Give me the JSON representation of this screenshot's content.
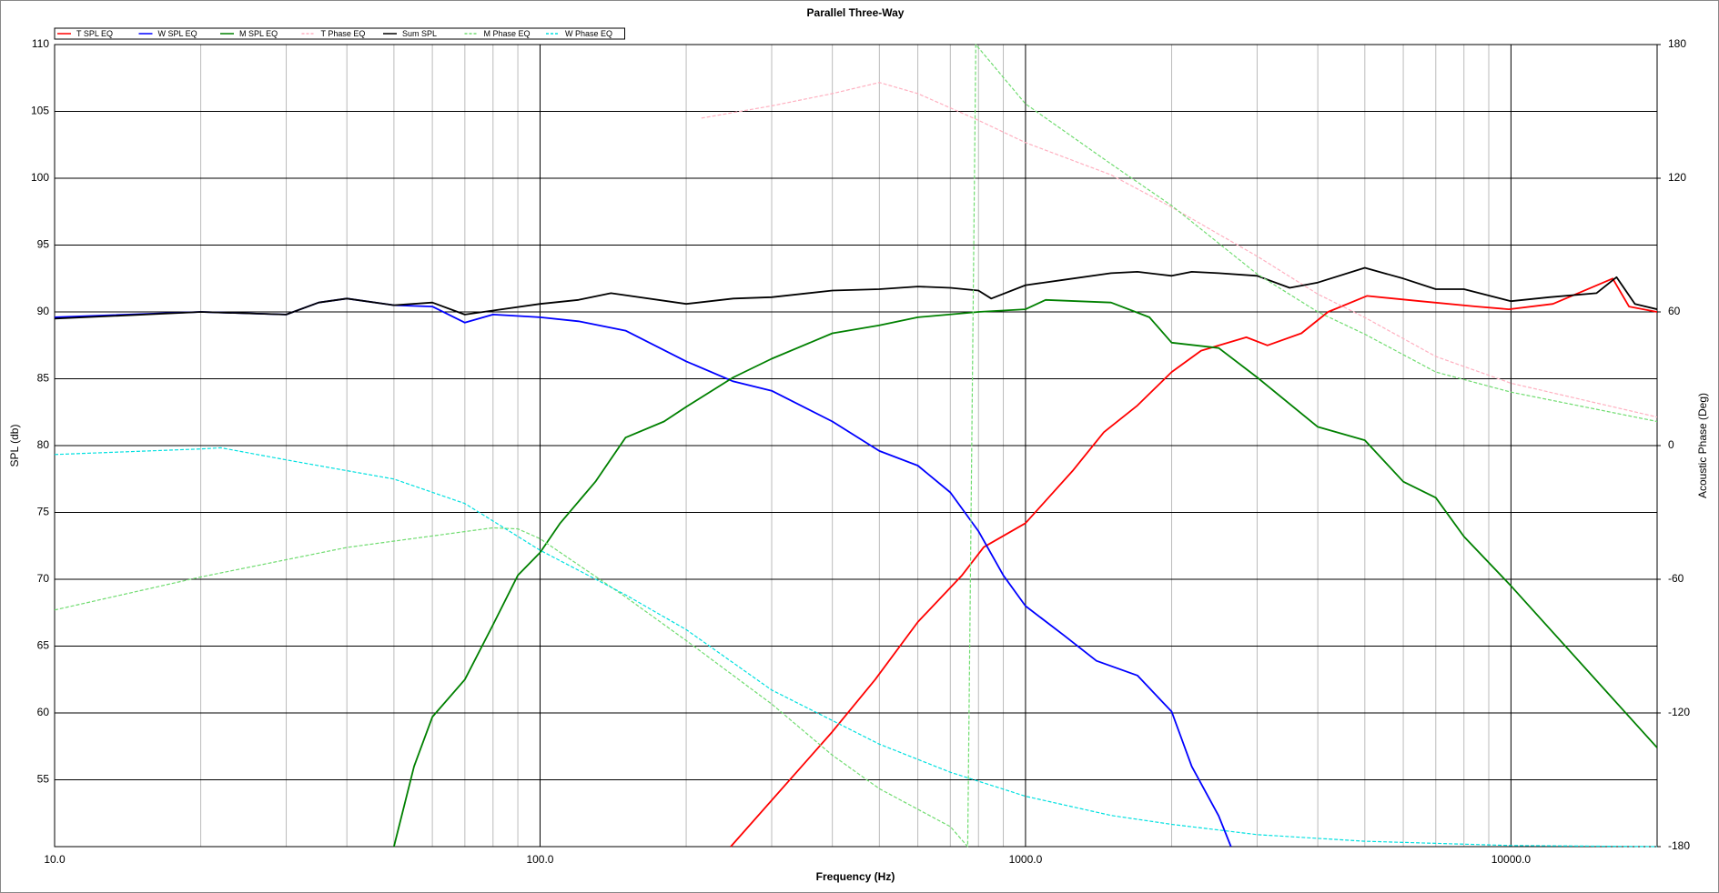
{
  "chart_data": {
    "type": "line",
    "title": "Parallel Three-Way",
    "x_label": "Frequency (Hz)",
    "y_label": "SPL (db)",
    "y2_label": "Acoustic Phase (Deg)",
    "x_scale": "log",
    "grid": true,
    "legend": "top-left",
    "xlim": [
      10,
      20000
    ],
    "xticks": [
      {
        "value": 10,
        "label": "10.0"
      },
      {
        "value": 100,
        "label": "100.0"
      },
      {
        "value": 1000,
        "label": "1000.0"
      },
      {
        "value": 10000,
        "label": "10000.0"
      }
    ],
    "ylim": [
      50,
      110
    ],
    "yticks": [
      55,
      60,
      65,
      70,
      75,
      80,
      85,
      90,
      95,
      100,
      105,
      110
    ],
    "y2lim": [
      -180,
      180
    ],
    "y2ticks": [
      -180,
      -120,
      -60,
      0,
      60,
      120,
      180
    ],
    "series": [
      {
        "name": "T SPL EQ",
        "color": "#ff0000",
        "dashed": false,
        "x": [
          247,
          400,
          490,
          600,
          740,
          820,
          1000,
          1250,
          1450,
          1700,
          2000,
          2300,
          2850,
          3150,
          3700,
          4200,
          5050,
          6500,
          8500,
          9900,
          12200,
          16200,
          17500,
          20000
        ],
        "values": [
          50,
          58.6,
          62.5,
          66.8,
          70.3,
          72.4,
          74.2,
          78.1,
          81.0,
          83.0,
          85.5,
          87.1,
          88.1,
          87.5,
          88.4,
          90.0,
          91.2,
          90.8,
          90.4,
          90.2,
          90.6,
          92.5,
          90.4,
          90.0
        ]
      },
      {
        "name": "W SPL EQ",
        "color": "#0000ff",
        "dashed": false,
        "x": [
          10,
          20,
          30,
          35,
          40,
          50,
          60,
          70,
          80,
          100,
          120,
          150,
          200,
          250,
          300,
          400,
          500,
          600,
          700,
          800,
          900,
          1000,
          1200,
          1400,
          1700,
          2000,
          2200,
          2500,
          2650
        ],
        "values": [
          89.6,
          90.0,
          89.8,
          90.7,
          91.0,
          90.5,
          90.4,
          89.2,
          89.8,
          89.6,
          89.3,
          88.6,
          86.3,
          84.8,
          84.1,
          81.8,
          79.6,
          78.5,
          76.5,
          73.6,
          70.3,
          68.0,
          65.8,
          63.9,
          62.8,
          60.1,
          56.0,
          52.3,
          50
        ]
      },
      {
        "name": "M SPL EQ",
        "color": "#008000",
        "dashed": false,
        "x": [
          50,
          55,
          60,
          70,
          80,
          90,
          100,
          110,
          130,
          150,
          180,
          200,
          250,
          300,
          400,
          500,
          600,
          800,
          1000,
          1100,
          1500,
          1800,
          2000,
          2500,
          3000,
          4000,
          5000,
          6000,
          7000,
          8000,
          10000,
          20000
        ],
        "values": [
          50,
          56,
          59.7,
          62.5,
          66.6,
          70.3,
          72.0,
          74.2,
          77.3,
          80.6,
          81.8,
          82.9,
          85.1,
          86.5,
          88.4,
          89.0,
          89.6,
          90.0,
          90.2,
          90.9,
          90.7,
          89.6,
          87.7,
          87.3,
          85.1,
          81.4,
          80.4,
          77.3,
          76.1,
          73.2,
          69.5,
          57.4
        ]
      },
      {
        "name": "T Phase EQ",
        "color": "#ffb0c0",
        "dashed": true,
        "axis": "y2",
        "x": [
          215,
          300,
          400,
          500,
          600,
          800,
          1000,
          1500,
          2000,
          3000,
          4000,
          5000,
          7000,
          10000,
          20000
        ],
        "values": [
          147,
          152.5,
          158,
          163,
          158,
          146,
          136,
          121.5,
          107,
          85,
          68,
          57.5,
          40,
          28,
          12.8
        ]
      },
      {
        "name": "Sum SPL",
        "color": "#000000",
        "dashed": false,
        "x": [
          10,
          20,
          30,
          35,
          40,
          50,
          60,
          70,
          80,
          100,
          120,
          140,
          200,
          250,
          300,
          400,
          500,
          600,
          700,
          800,
          850,
          1000,
          1200,
          1500,
          1700,
          2000,
          2200,
          2500,
          3000,
          3500,
          4000,
          5000,
          6000,
          7000,
          8000,
          10000,
          12000,
          15000,
          16500,
          18000,
          20000
        ],
        "values": [
          89.5,
          90.0,
          89.8,
          90.7,
          91.0,
          90.5,
          90.7,
          89.8,
          90.1,
          90.6,
          90.9,
          91.4,
          90.6,
          91.0,
          91.1,
          91.6,
          91.7,
          91.9,
          91.8,
          91.6,
          91.0,
          92.0,
          92.4,
          92.9,
          93.0,
          92.7,
          93.0,
          92.9,
          92.7,
          91.8,
          92.2,
          93.3,
          92.5,
          91.7,
          91.7,
          90.8,
          91.1,
          91.4,
          92.6,
          90.6,
          90.2
        ]
      },
      {
        "name": "M Phase EQ",
        "color": "#70dc70",
        "dashed": true,
        "axis": "y2",
        "x": [
          10,
          20,
          40,
          80,
          90,
          100,
          150,
          200,
          300,
          400,
          500,
          700,
          760,
          790,
          1000,
          1500,
          2000,
          3000,
          4000,
          5000,
          7000,
          10000,
          20000
        ],
        "values": [
          -73.8,
          -59,
          -45.7,
          -36.9,
          -37.4,
          -41.8,
          -67.9,
          -87.5,
          -116,
          -139,
          -154,
          -171,
          -180,
          180,
          153.4,
          126.4,
          107.7,
          77,
          60,
          50,
          33,
          24,
          10.8
        ]
      },
      {
        "name": "W Phase EQ",
        "color": "#00e0e0",
        "dashed": true,
        "axis": "y2",
        "x": [
          10,
          20,
          22,
          30,
          50,
          70,
          100,
          150,
          200,
          300,
          500,
          700,
          1000,
          1500,
          2000,
          3000,
          5000,
          10000,
          20000
        ],
        "values": [
          -4,
          -1.5,
          -1,
          -6.4,
          -15,
          -26,
          -47,
          -67,
          -82.6,
          -109.7,
          -134,
          -146.6,
          -157.4,
          -166,
          -170,
          -174.6,
          -177.6,
          -179.5,
          -180
        ]
      }
    ]
  }
}
